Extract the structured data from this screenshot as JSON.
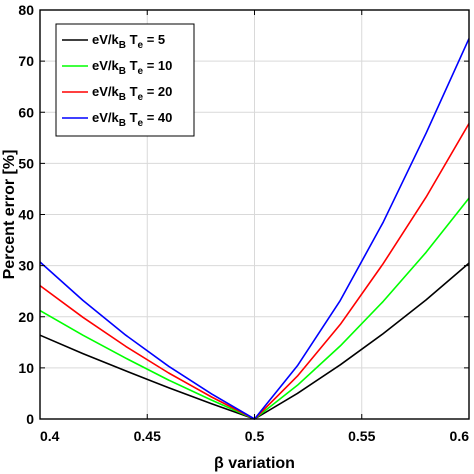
{
  "chart_data": {
    "type": "line",
    "xlabel": "β variation",
    "ylabel": "Percent error [%]",
    "xlim": [
      0.4,
      0.6
    ],
    "ylim": [
      0,
      80
    ],
    "xticks": [
      "0.4",
      "0.45",
      "0.5",
      "0.55",
      "0.6"
    ],
    "yticks": [
      "0",
      "10",
      "20",
      "30",
      "40",
      "50",
      "60",
      "70",
      "80"
    ],
    "grid": true,
    "legend_position": "top-left",
    "series": [
      {
        "name": "eV/kBTe = 5",
        "legend_parts": [
          "eV/k",
          "B",
          " T",
          "e",
          " = 5"
        ],
        "color": "#000000",
        "x": [
          0.4,
          0.42,
          0.44,
          0.46,
          0.48,
          0.5,
          0.52,
          0.54,
          0.56,
          0.58,
          0.6
        ],
        "y": [
          16.4,
          12.8,
          9.4,
          6.1,
          3.0,
          0,
          5.0,
          10.6,
          16.7,
          23.3,
          30.5
        ]
      },
      {
        "name": "eV/kBTe = 10",
        "legend_parts": [
          "eV/k",
          "B",
          " T",
          "e",
          " = 10"
        ],
        "color": "#00ff00",
        "x": [
          0.4,
          0.42,
          0.44,
          0.46,
          0.48,
          0.5,
          0.52,
          0.54,
          0.56,
          0.58,
          0.6
        ],
        "y": [
          21.2,
          16.4,
          11.9,
          7.6,
          3.7,
          0,
          6.6,
          14.3,
          23.0,
          32.6,
          43.2
        ]
      },
      {
        "name": "eV/kBTe = 20",
        "legend_parts": [
          "eV/k",
          "B",
          " T",
          "e",
          " = 20"
        ],
        "color": "#ff0000",
        "x": [
          0.4,
          0.42,
          0.44,
          0.46,
          0.48,
          0.5,
          0.52,
          0.54,
          0.56,
          0.58,
          0.6
        ],
        "y": [
          26.1,
          19.9,
          14.2,
          9.0,
          4.3,
          0,
          8.4,
          18.5,
          30.4,
          43.4,
          57.8
        ]
      },
      {
        "name": "eV/kBTe = 40",
        "legend_parts": [
          "eV/k",
          "B",
          " T",
          "e",
          " = 40"
        ],
        "color": "#0000ff",
        "x": [
          0.4,
          0.42,
          0.44,
          0.46,
          0.48,
          0.5,
          0.52,
          0.54,
          0.56,
          0.58,
          0.6
        ],
        "y": [
          30.7,
          23.2,
          16.4,
          10.3,
          4.9,
          0,
          10.4,
          23.2,
          38.5,
          55.9,
          74.4
        ]
      }
    ]
  }
}
